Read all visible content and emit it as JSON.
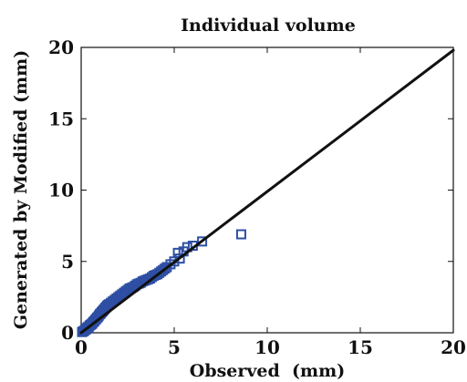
{
  "chart_data": {
    "type": "scatter",
    "title": "Individual volume",
    "xlabel": "Observed  (mm)",
    "ylabel": "Generated by Modified (mm)",
    "xlim": [
      0,
      20
    ],
    "ylim": [
      0,
      20
    ],
    "xticks": [
      "0",
      "5",
      "10",
      "15",
      "20"
    ],
    "yticks": [
      "0",
      "5",
      "10",
      "15",
      "20"
    ],
    "grid": false,
    "legend": "none",
    "colors": {
      "marker": "#2e4fa3",
      "line": "#111111",
      "axis": "#111111"
    },
    "series": [
      {
        "marker": "square",
        "points": [
          [
            0.05,
            0.05
          ],
          [
            0.1,
            0.1
          ],
          [
            0.15,
            0.12
          ],
          [
            0.2,
            0.2
          ],
          [
            0.25,
            0.22
          ],
          [
            0.3,
            0.3
          ],
          [
            0.35,
            0.4
          ],
          [
            0.4,
            0.35
          ],
          [
            0.45,
            0.5
          ],
          [
            0.5,
            0.55
          ],
          [
            0.55,
            0.6
          ],
          [
            0.6,
            0.65
          ],
          [
            0.65,
            0.75
          ],
          [
            0.7,
            0.8
          ],
          [
            0.75,
            0.9
          ],
          [
            0.8,
            0.95
          ],
          [
            0.85,
            1.05
          ],
          [
            0.9,
            1.1
          ],
          [
            0.95,
            1.2
          ],
          [
            1.0,
            1.3
          ],
          [
            1.05,
            1.35
          ],
          [
            1.1,
            1.45
          ],
          [
            1.15,
            1.5
          ],
          [
            1.2,
            1.6
          ],
          [
            1.25,
            1.65
          ],
          [
            1.3,
            1.75
          ],
          [
            1.35,
            1.8
          ],
          [
            1.4,
            1.9
          ],
          [
            1.45,
            1.95
          ],
          [
            1.5,
            2.0
          ],
          [
            1.6,
            2.1
          ],
          [
            1.7,
            2.2
          ],
          [
            1.8,
            2.3
          ],
          [
            1.9,
            2.4
          ],
          [
            2.0,
            2.5
          ],
          [
            2.1,
            2.6
          ],
          [
            2.2,
            2.7
          ],
          [
            2.3,
            2.8
          ],
          [
            2.4,
            2.9
          ],
          [
            2.5,
            3.0
          ],
          [
            2.6,
            3.1
          ],
          [
            2.7,
            3.15
          ],
          [
            2.8,
            3.2
          ],
          [
            2.9,
            3.3
          ],
          [
            3.0,
            3.4
          ],
          [
            3.1,
            3.45
          ],
          [
            3.2,
            3.5
          ],
          [
            3.3,
            3.6
          ],
          [
            3.4,
            3.65
          ],
          [
            3.5,
            3.7
          ],
          [
            3.6,
            3.75
          ],
          [
            3.7,
            3.8
          ],
          [
            3.8,
            3.9
          ],
          [
            3.9,
            4.0
          ],
          [
            4.0,
            4.05
          ],
          [
            4.1,
            4.1
          ],
          [
            4.2,
            4.2
          ],
          [
            4.3,
            4.3
          ],
          [
            4.4,
            4.4
          ],
          [
            4.5,
            4.5
          ],
          [
            4.6,
            4.6
          ],
          [
            4.8,
            4.8
          ],
          [
            5.0,
            5.0
          ],
          [
            5.2,
            5.6
          ],
          [
            5.3,
            5.2
          ],
          [
            5.5,
            5.7
          ],
          [
            5.7,
            6.0
          ],
          [
            6.0,
            6.1
          ],
          [
            6.5,
            6.4
          ],
          [
            8.6,
            6.9
          ]
        ]
      },
      {
        "name": "",
        "type": "line",
        "points": [
          [
            0,
            0
          ],
          [
            20,
            19.8
          ]
        ]
      }
    ]
  }
}
